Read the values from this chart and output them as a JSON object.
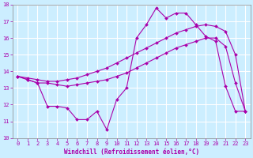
{
  "xlabel": "Windchill (Refroidissement éolien,°C)",
  "bg_color": "#cceeff",
  "line_color": "#aa00aa",
  "grid_color": "#ffffff",
  "xlim_min": -0.5,
  "xlim_max": 23.5,
  "ylim_min": 10,
  "ylim_max": 18,
  "yticks": [
    10,
    11,
    12,
    13,
    14,
    15,
    16,
    17,
    18
  ],
  "xticks": [
    0,
    1,
    2,
    3,
    4,
    5,
    6,
    7,
    8,
    9,
    10,
    11,
    12,
    13,
    14,
    15,
    16,
    17,
    18,
    19,
    20,
    21,
    22,
    23
  ],
  "jagged_x": [
    0,
    1,
    2,
    3,
    4,
    5,
    6,
    7,
    8,
    9,
    10,
    11,
    12,
    13,
    14,
    15,
    16,
    17,
    18,
    19,
    20,
    21,
    22,
    23
  ],
  "jagged_y": [
    13.7,
    13.5,
    13.3,
    11.9,
    11.9,
    11.8,
    11.1,
    11.1,
    11.6,
    10.5,
    12.3,
    13.0,
    16.0,
    16.8,
    17.8,
    17.2,
    17.5,
    17.5,
    16.8,
    16.1,
    15.8,
    13.1,
    11.6,
    11.6
  ],
  "trend_upper_x": [
    0,
    1,
    2,
    3,
    4,
    5,
    6,
    7,
    8,
    9,
    10,
    11,
    12,
    13,
    14,
    15,
    16,
    17,
    18,
    19,
    20,
    21,
    22,
    23
  ],
  "trend_upper_y": [
    13.7,
    13.6,
    13.5,
    13.4,
    13.4,
    13.5,
    13.6,
    13.8,
    14.0,
    14.2,
    14.5,
    14.8,
    15.1,
    15.4,
    15.7,
    16.0,
    16.3,
    16.5,
    16.7,
    16.8,
    16.7,
    16.4,
    15.0,
    11.6
  ],
  "trend_lower_x": [
    0,
    1,
    2,
    3,
    4,
    5,
    6,
    7,
    8,
    9,
    10,
    11,
    12,
    13,
    14,
    15,
    16,
    17,
    18,
    19,
    20,
    21,
    22,
    23
  ],
  "trend_lower_y": [
    13.7,
    13.5,
    13.3,
    13.3,
    13.2,
    13.1,
    13.2,
    13.3,
    13.4,
    13.5,
    13.7,
    13.9,
    14.2,
    14.5,
    14.8,
    15.1,
    15.4,
    15.6,
    15.8,
    16.0,
    16.0,
    15.5,
    13.3,
    11.6
  ],
  "tick_fontsize": 5,
  "xlabel_fontsize": 5.5
}
